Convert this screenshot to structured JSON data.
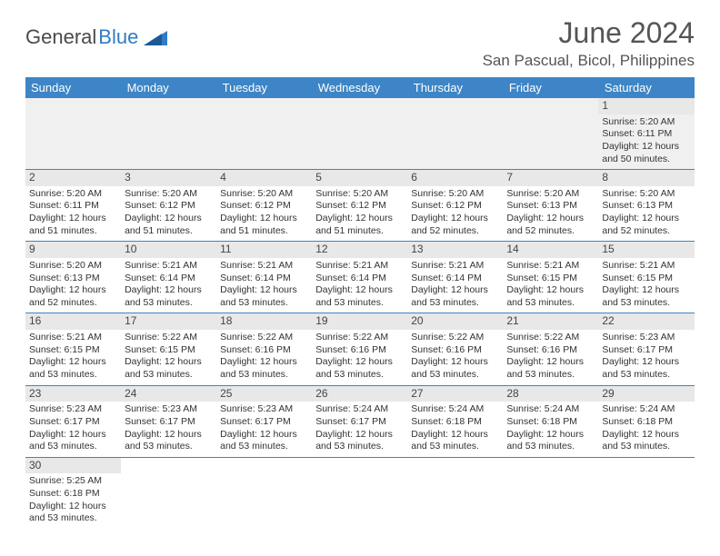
{
  "logo": {
    "text_dark": "General",
    "text_blue": "Blue"
  },
  "title": "June 2024",
  "location": "San Pascual, Bicol, Philippines",
  "colors": {
    "header_bg": "#3d85c6",
    "header_text": "#ffffff",
    "daynum_bg": "#e8e8e8",
    "border": "#3d85c6",
    "text": "#333333",
    "logo_dark": "#4a4a4a",
    "logo_blue": "#2f7cc4"
  },
  "day_headers": [
    "Sunday",
    "Monday",
    "Tuesday",
    "Wednesday",
    "Thursday",
    "Friday",
    "Saturday"
  ],
  "weeks": [
    [
      null,
      null,
      null,
      null,
      null,
      null,
      {
        "n": "1",
        "sr": "Sunrise: 5:20 AM",
        "ss": "Sunset: 6:11 PM",
        "d1": "Daylight: 12 hours",
        "d2": "and 50 minutes."
      }
    ],
    [
      {
        "n": "2",
        "sr": "Sunrise: 5:20 AM",
        "ss": "Sunset: 6:11 PM",
        "d1": "Daylight: 12 hours",
        "d2": "and 51 minutes."
      },
      {
        "n": "3",
        "sr": "Sunrise: 5:20 AM",
        "ss": "Sunset: 6:12 PM",
        "d1": "Daylight: 12 hours",
        "d2": "and 51 minutes."
      },
      {
        "n": "4",
        "sr": "Sunrise: 5:20 AM",
        "ss": "Sunset: 6:12 PM",
        "d1": "Daylight: 12 hours",
        "d2": "and 51 minutes."
      },
      {
        "n": "5",
        "sr": "Sunrise: 5:20 AM",
        "ss": "Sunset: 6:12 PM",
        "d1": "Daylight: 12 hours",
        "d2": "and 51 minutes."
      },
      {
        "n": "6",
        "sr": "Sunrise: 5:20 AM",
        "ss": "Sunset: 6:12 PM",
        "d1": "Daylight: 12 hours",
        "d2": "and 52 minutes."
      },
      {
        "n": "7",
        "sr": "Sunrise: 5:20 AM",
        "ss": "Sunset: 6:13 PM",
        "d1": "Daylight: 12 hours",
        "d2": "and 52 minutes."
      },
      {
        "n": "8",
        "sr": "Sunrise: 5:20 AM",
        "ss": "Sunset: 6:13 PM",
        "d1": "Daylight: 12 hours",
        "d2": "and 52 minutes."
      }
    ],
    [
      {
        "n": "9",
        "sr": "Sunrise: 5:20 AM",
        "ss": "Sunset: 6:13 PM",
        "d1": "Daylight: 12 hours",
        "d2": "and 52 minutes."
      },
      {
        "n": "10",
        "sr": "Sunrise: 5:21 AM",
        "ss": "Sunset: 6:14 PM",
        "d1": "Daylight: 12 hours",
        "d2": "and 53 minutes."
      },
      {
        "n": "11",
        "sr": "Sunrise: 5:21 AM",
        "ss": "Sunset: 6:14 PM",
        "d1": "Daylight: 12 hours",
        "d2": "and 53 minutes."
      },
      {
        "n": "12",
        "sr": "Sunrise: 5:21 AM",
        "ss": "Sunset: 6:14 PM",
        "d1": "Daylight: 12 hours",
        "d2": "and 53 minutes."
      },
      {
        "n": "13",
        "sr": "Sunrise: 5:21 AM",
        "ss": "Sunset: 6:14 PM",
        "d1": "Daylight: 12 hours",
        "d2": "and 53 minutes."
      },
      {
        "n": "14",
        "sr": "Sunrise: 5:21 AM",
        "ss": "Sunset: 6:15 PM",
        "d1": "Daylight: 12 hours",
        "d2": "and 53 minutes."
      },
      {
        "n": "15",
        "sr": "Sunrise: 5:21 AM",
        "ss": "Sunset: 6:15 PM",
        "d1": "Daylight: 12 hours",
        "d2": "and 53 minutes."
      }
    ],
    [
      {
        "n": "16",
        "sr": "Sunrise: 5:21 AM",
        "ss": "Sunset: 6:15 PM",
        "d1": "Daylight: 12 hours",
        "d2": "and 53 minutes."
      },
      {
        "n": "17",
        "sr": "Sunrise: 5:22 AM",
        "ss": "Sunset: 6:15 PM",
        "d1": "Daylight: 12 hours",
        "d2": "and 53 minutes."
      },
      {
        "n": "18",
        "sr": "Sunrise: 5:22 AM",
        "ss": "Sunset: 6:16 PM",
        "d1": "Daylight: 12 hours",
        "d2": "and 53 minutes."
      },
      {
        "n": "19",
        "sr": "Sunrise: 5:22 AM",
        "ss": "Sunset: 6:16 PM",
        "d1": "Daylight: 12 hours",
        "d2": "and 53 minutes."
      },
      {
        "n": "20",
        "sr": "Sunrise: 5:22 AM",
        "ss": "Sunset: 6:16 PM",
        "d1": "Daylight: 12 hours",
        "d2": "and 53 minutes."
      },
      {
        "n": "21",
        "sr": "Sunrise: 5:22 AM",
        "ss": "Sunset: 6:16 PM",
        "d1": "Daylight: 12 hours",
        "d2": "and 53 minutes."
      },
      {
        "n": "22",
        "sr": "Sunrise: 5:23 AM",
        "ss": "Sunset: 6:17 PM",
        "d1": "Daylight: 12 hours",
        "d2": "and 53 minutes."
      }
    ],
    [
      {
        "n": "23",
        "sr": "Sunrise: 5:23 AM",
        "ss": "Sunset: 6:17 PM",
        "d1": "Daylight: 12 hours",
        "d2": "and 53 minutes."
      },
      {
        "n": "24",
        "sr": "Sunrise: 5:23 AM",
        "ss": "Sunset: 6:17 PM",
        "d1": "Daylight: 12 hours",
        "d2": "and 53 minutes."
      },
      {
        "n": "25",
        "sr": "Sunrise: 5:23 AM",
        "ss": "Sunset: 6:17 PM",
        "d1": "Daylight: 12 hours",
        "d2": "and 53 minutes."
      },
      {
        "n": "26",
        "sr": "Sunrise: 5:24 AM",
        "ss": "Sunset: 6:17 PM",
        "d1": "Daylight: 12 hours",
        "d2": "and 53 minutes."
      },
      {
        "n": "27",
        "sr": "Sunrise: 5:24 AM",
        "ss": "Sunset: 6:18 PM",
        "d1": "Daylight: 12 hours",
        "d2": "and 53 minutes."
      },
      {
        "n": "28",
        "sr": "Sunrise: 5:24 AM",
        "ss": "Sunset: 6:18 PM",
        "d1": "Daylight: 12 hours",
        "d2": "and 53 minutes."
      },
      {
        "n": "29",
        "sr": "Sunrise: 5:24 AM",
        "ss": "Sunset: 6:18 PM",
        "d1": "Daylight: 12 hours",
        "d2": "and 53 minutes."
      }
    ],
    [
      {
        "n": "30",
        "sr": "Sunrise: 5:25 AM",
        "ss": "Sunset: 6:18 PM",
        "d1": "Daylight: 12 hours",
        "d2": "and 53 minutes."
      },
      null,
      null,
      null,
      null,
      null,
      null
    ]
  ]
}
